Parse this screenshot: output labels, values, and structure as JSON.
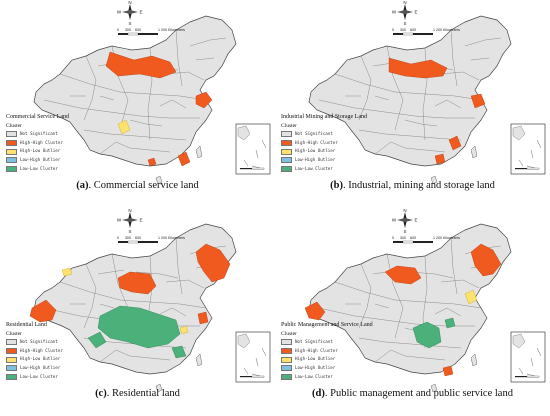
{
  "colors": {
    "not_significant": "#e3e3e3",
    "high_high": "#f05a1e",
    "high_low": "#fde26e",
    "low_high": "#7ec1e0",
    "low_low": "#4cb07a",
    "border": "#444444"
  },
  "compass": {
    "n": "N",
    "s": "S",
    "e": "E",
    "w": "W"
  },
  "scale_bar": {
    "ticks": [
      "0",
      "300",
      "600",
      "1 200 Kilometers"
    ]
  },
  "panels": [
    {
      "id": "a",
      "legend_title": "Commercial Service Land",
      "legend_subtitle": "Cluster",
      "legend_items": [
        "Not Significant",
        "High-High Cluster",
        "High-Low Outlier",
        "Low-High Outlier",
        "Low-Low Cluster"
      ],
      "caption_letter": "(a)",
      "caption_text": ". Commercial service land"
    },
    {
      "id": "b",
      "legend_title": "Industrial Mining and Storage Land",
      "legend_subtitle": "Cluster",
      "legend_items": [
        "Not Significant",
        "High-High Cluster",
        "High-Low Outlier",
        "Low-High Outlier",
        "Low-Low Cluster"
      ],
      "caption_letter": "(b)",
      "caption_text": ". Industrial, mining and storage land"
    },
    {
      "id": "c",
      "legend_title": "Residential Land",
      "legend_subtitle": "Cluster",
      "legend_items": [
        "Not Significant",
        "High-High Cluster",
        "High-Low Outlier",
        "Low-High Outlier",
        "Low-Low Cluster"
      ],
      "caption_letter": "(c)",
      "caption_text": ". Residential land"
    },
    {
      "id": "d",
      "legend_title": "Public Management and Service Land",
      "legend_subtitle": "Cluster",
      "legend_items": [
        "Not Significant",
        "High-High Cluster",
        "High-Low Outlier",
        "Low-High Outlier",
        "Low-Low Cluster"
      ],
      "caption_letter": "(d)",
      "caption_text": ". Public management and public service land"
    }
  ]
}
